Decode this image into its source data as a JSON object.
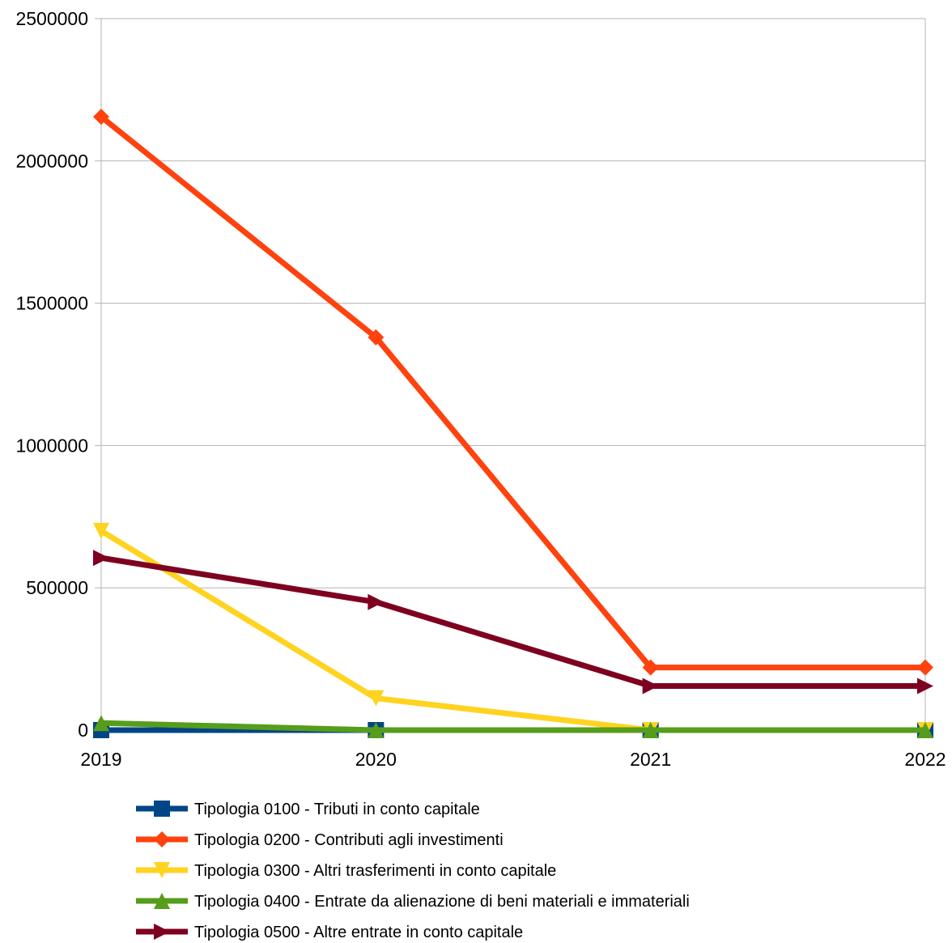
{
  "chart_data": {
    "type": "line",
    "title": "",
    "xlabel": "",
    "ylabel": "",
    "x": [
      "2019",
      "2020",
      "2021",
      "2022"
    ],
    "ylim": [
      0,
      2500000
    ],
    "yticks": [
      0,
      500000,
      1000000,
      1500000,
      2000000,
      2500000
    ],
    "ytick_labels": [
      "0",
      "500000",
      "1000000",
      "1500000",
      "2000000",
      "2500000"
    ],
    "grid": true,
    "legend_position": "bottom",
    "series": [
      {
        "name": "Tipologia 0100 - Tributi in conto capitale",
        "color": "#004586",
        "marker": "square",
        "values": [
          0,
          0,
          0,
          0
        ]
      },
      {
        "name": "Tipologia 0200 - Contributi agli investimenti",
        "color": "#ff420e",
        "marker": "diamond",
        "values": [
          2155000,
          1380000,
          220000,
          220000
        ]
      },
      {
        "name": "Tipologia 0300 - Altri trasferimenti in conto capitale",
        "color": "#ffd320",
        "marker": "triangle-down",
        "values": [
          700000,
          112000,
          0,
          0
        ]
      },
      {
        "name": "Tipologia 0400 - Entrate da alienazione di beni materiali e immateriali",
        "color": "#579d1c",
        "marker": "triangle-up",
        "values": [
          25000,
          0,
          0,
          0
        ]
      },
      {
        "name": "Tipologia 0500 - Altre entrate in conto capitale",
        "color": "#7e0021",
        "marker": "triangle-right",
        "values": [
          605000,
          450000,
          155000,
          155000
        ]
      }
    ]
  }
}
